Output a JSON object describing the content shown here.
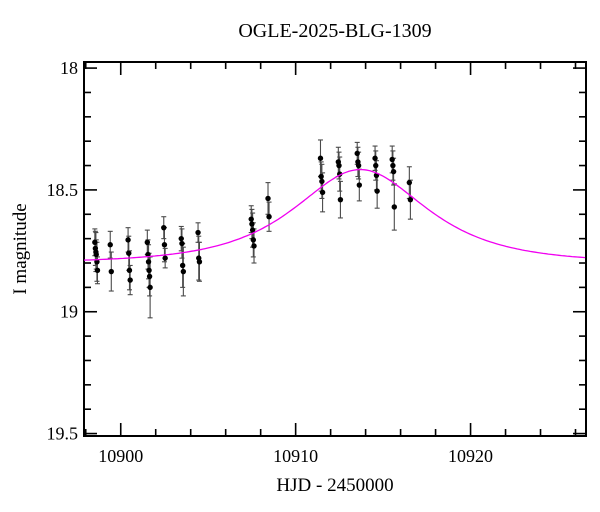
{
  "chart_data": {
    "type": "scatter",
    "title": "OGLE-2025-BLG-1309",
    "xlabel": "HJD - 2450000",
    "ylabel": "I magnitude",
    "xlim": [
      10897.9,
      10926.6
    ],
    "ylim_top": 17.975,
    "ylim_bottom": 19.51,
    "y_axis_inverted": true,
    "grid": false,
    "legend": "none",
    "x_major_ticks": [
      10900,
      10910,
      10920
    ],
    "x_minor_step": 2,
    "y_major_ticks": [
      18,
      18.5,
      19,
      19.5
    ],
    "y_major_tick_labels": [
      "18",
      "18.5",
      "19",
      "19.5"
    ],
    "y_minor_step": 0.1,
    "colors": {
      "frame": "#000000",
      "points": "#000000",
      "error_bars": "#4a4a4a",
      "curve": "#f000f0",
      "background": "#ffffff"
    },
    "model_curve": {
      "type": "paczynski",
      "t0": 10913.7,
      "tE_days": 4.8,
      "u0": 0.9,
      "baseline_mag": 18.8,
      "peak_mag": 18.42
    },
    "points": [
      [
        10898.52,
        18.715,
        0.055
      ],
      [
        10898.55,
        18.74,
        0.07
      ],
      [
        10898.58,
        18.755,
        0.08
      ],
      [
        10898.6,
        18.765,
        0.06
      ],
      [
        10898.64,
        18.795,
        0.08
      ],
      [
        10898.67,
        18.83,
        0.055
      ],
      [
        10899.4,
        18.725,
        0.055
      ],
      [
        10899.46,
        18.835,
        0.08
      ],
      [
        10900.42,
        18.705,
        0.05
      ],
      [
        10900.46,
        18.76,
        0.07
      ],
      [
        10900.5,
        18.83,
        0.08
      ],
      [
        10900.54,
        18.87,
        0.06
      ],
      [
        10901.52,
        18.715,
        0.05
      ],
      [
        10901.56,
        18.765,
        0.06
      ],
      [
        10901.59,
        18.795,
        0.07
      ],
      [
        10901.62,
        18.83,
        0.07
      ],
      [
        10901.65,
        18.855,
        0.08
      ],
      [
        10901.68,
        18.9,
        0.125
      ],
      [
        10902.46,
        18.655,
        0.045
      ],
      [
        10902.5,
        18.725,
        0.07
      ],
      [
        10902.54,
        18.78,
        0.04
      ],
      [
        10903.46,
        18.7,
        0.05
      ],
      [
        10903.5,
        18.72,
        0.06
      ],
      [
        10903.54,
        18.81,
        0.09
      ],
      [
        10903.58,
        18.835,
        0.1
      ],
      [
        10904.42,
        18.675,
        0.04
      ],
      [
        10904.46,
        18.78,
        0.09
      ],
      [
        10904.5,
        18.795,
        0.08
      ],
      [
        10907.46,
        18.62,
        0.055
      ],
      [
        10907.5,
        18.64,
        0.06
      ],
      [
        10907.54,
        18.665,
        0.07
      ],
      [
        10907.58,
        18.705,
        0.07
      ],
      [
        10907.62,
        18.73,
        0.07
      ],
      [
        10908.42,
        18.535,
        0.065
      ],
      [
        10908.48,
        18.61,
        0.06
      ],
      [
        10911.42,
        18.37,
        0.075
      ],
      [
        10911.46,
        18.445,
        0.06
      ],
      [
        10911.5,
        18.465,
        0.07
      ],
      [
        10911.54,
        18.51,
        0.08
      ],
      [
        10912.44,
        18.385,
        0.06
      ],
      [
        10912.48,
        18.4,
        0.055
      ],
      [
        10912.52,
        18.435,
        0.07
      ],
      [
        10912.56,
        18.54,
        0.075
      ],
      [
        10913.52,
        18.35,
        0.045
      ],
      [
        10913.56,
        18.385,
        0.06
      ],
      [
        10913.6,
        18.4,
        0.055
      ],
      [
        10913.64,
        18.48,
        0.065
      ],
      [
        10914.54,
        18.37,
        0.05
      ],
      [
        10914.58,
        18.4,
        0.06
      ],
      [
        10914.62,
        18.44,
        0.06
      ],
      [
        10914.66,
        18.505,
        0.07
      ],
      [
        10915.52,
        18.375,
        0.055
      ],
      [
        10915.56,
        18.4,
        0.06
      ],
      [
        10915.6,
        18.425,
        0.055
      ],
      [
        10915.64,
        18.57,
        0.095
      ],
      [
        10916.5,
        18.47,
        0.065
      ],
      [
        10916.56,
        18.54,
        0.08
      ]
    ]
  }
}
